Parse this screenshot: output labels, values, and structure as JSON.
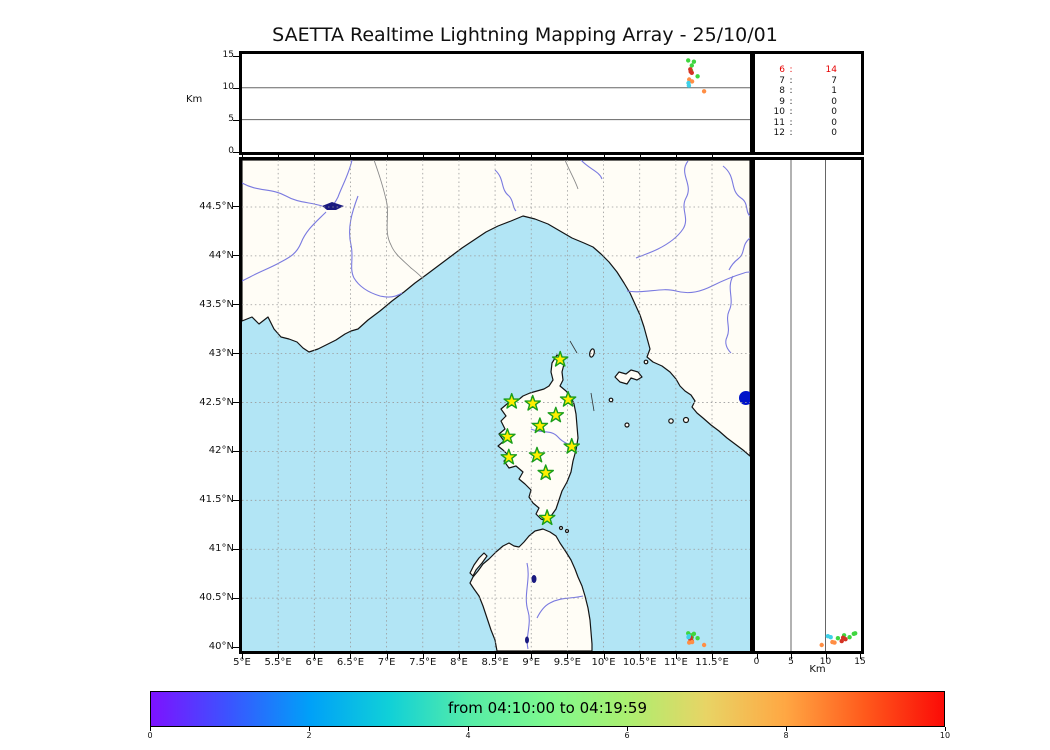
{
  "title": "SAETTA Realtime Lightning Mapping Array - 25/10/01",
  "alt_axis": {
    "label": "Km",
    "range": [
      0,
      15
    ],
    "ticks": [
      0,
      5,
      10,
      15
    ],
    "gridlines": [
      5,
      10
    ]
  },
  "lon_axis": {
    "ticks": [
      {
        "value": 5,
        "label": "5°E"
      },
      {
        "value": 5.5,
        "label": "5.5°E"
      },
      {
        "value": 6,
        "label": "6°E"
      },
      {
        "value": 6.5,
        "label": "6.5°E"
      },
      {
        "value": 7,
        "label": "7°E"
      },
      {
        "value": 7.5,
        "label": "7.5°E"
      },
      {
        "value": 8,
        "label": "8°E"
      },
      {
        "value": 8.5,
        "label": "8.5°E"
      },
      {
        "value": 9,
        "label": "9°E"
      },
      {
        "value": 9.5,
        "label": "9.5°E"
      },
      {
        "value": 10,
        "label": "10°E"
      },
      {
        "value": 10.5,
        "label": "10.5°E"
      },
      {
        "value": 11,
        "label": "11°E"
      },
      {
        "value": 11.5,
        "label": "11.5°E"
      }
    ]
  },
  "lat_axis": {
    "ticks": [
      {
        "value": 44.5,
        "label": "44.5°N"
      },
      {
        "value": 44,
        "label": "44°N"
      },
      {
        "value": 43.5,
        "label": "43.5°N"
      },
      {
        "value": 43,
        "label": "43°N"
      },
      {
        "value": 42.5,
        "label": "42.5°N"
      },
      {
        "value": 42,
        "label": "42°N"
      },
      {
        "value": 41.5,
        "label": "41.5°N"
      },
      {
        "value": 41,
        "label": "41°N"
      },
      {
        "value": 40.5,
        "label": "40.5°N"
      },
      {
        "value": 40,
        "label": "40°N"
      }
    ]
  },
  "stats_panel": {
    "rows": [
      {
        "label": "6",
        "value": "14",
        "highlight": true
      },
      {
        "label": "7",
        "value": "7",
        "highlight": false
      },
      {
        "label": "8",
        "value": "1",
        "highlight": false
      },
      {
        "label": "9",
        "value": "0",
        "highlight": false
      },
      {
        "label": "10",
        "value": "0",
        "highlight": false
      },
      {
        "label": "11",
        "value": "0",
        "highlight": false
      },
      {
        "label": "12",
        "value": "0",
        "highlight": false
      }
    ],
    "highlight_color": "#e60000"
  },
  "colorbar": {
    "label": "from 04:10:00 to 04:19:59",
    "range": [
      0,
      10
    ],
    "ticks": [
      0,
      2,
      4,
      6,
      8,
      10
    ],
    "gradient": [
      "#7d12ff",
      "#3a55ff",
      "#00a0f8",
      "#10d0d8",
      "#55eca8",
      "#7ef98e",
      "#abef70",
      "#e8d465",
      "#ffa743",
      "#ff5a1c",
      "#fb0b07"
    ]
  },
  "colors": {
    "sea": "#b2e5f5",
    "land": "#fffdf6",
    "coast": "#141414",
    "river": "#7a7ae0",
    "boundary": "#8a8a8a",
    "grid": "#9a9a9a",
    "panel_grid": "#666666",
    "lake": "#1a1a80",
    "lake_round": "#0013c9",
    "star_fill": "#ffee00",
    "star_edge": "#1a9e1a"
  },
  "chart_data": {
    "type": "scatter",
    "title": "SAETTA Realtime Lightning Mapping Array - 25/10/01",
    "panels": [
      {
        "id": "altitude-vs-longitude",
        "ylabel": "Km",
        "ylim": [
          0,
          15
        ],
        "xlim": [
          5,
          12.03
        ],
        "grid": "horizontal at 5,10"
      },
      {
        "id": "map-plan-view",
        "xlim": [
          5,
          12.03
        ],
        "ylim": [
          40,
          45.02
        ],
        "grid": "dashed 0.5 deg"
      },
      {
        "id": "altitude-vs-latitude",
        "xlabel": "Km",
        "xlim": [
          0,
          15
        ],
        "ylim": [
          40,
          45.02
        ],
        "grid": "vertical at 5,10"
      }
    ],
    "stations": [
      {
        "lon": 9.4,
        "lat": 42.94
      },
      {
        "lon": 8.73,
        "lat": 42.51
      },
      {
        "lon": 9.02,
        "lat": 42.49
      },
      {
        "lon": 9.51,
        "lat": 42.53
      },
      {
        "lon": 9.34,
        "lat": 42.37
      },
      {
        "lon": 9.12,
        "lat": 42.26
      },
      {
        "lon": 8.67,
        "lat": 42.15
      },
      {
        "lon": 9.56,
        "lat": 42.05
      },
      {
        "lon": 8.69,
        "lat": 41.94
      },
      {
        "lon": 9.08,
        "lat": 41.96
      },
      {
        "lon": 9.2,
        "lat": 41.78
      },
      {
        "lon": 9.22,
        "lat": 41.32
      }
    ],
    "sources": [
      {
        "lon": 11.17,
        "lat": 40.14,
        "alt_km": 14.3,
        "color": "#3fd63f"
      },
      {
        "lon": 11.25,
        "lat": 40.135,
        "alt_km": 14.1,
        "color": "#3fd63f"
      },
      {
        "lon": 11.22,
        "lat": 40.1,
        "alt_km": 13.5,
        "color": "#3fd63f"
      },
      {
        "lon": 11.3,
        "lat": 40.09,
        "alt_km": 11.8,
        "color": "#3fd63f"
      },
      {
        "lon": 11.21,
        "lat": 40.12,
        "alt_km": 12.7,
        "color": "#3fd63f"
      },
      {
        "lon": 11.2,
        "lat": 40.08,
        "alt_km": 12.9,
        "color": "#d43324"
      },
      {
        "lon": 11.22,
        "lat": 40.06,
        "alt_km": 12.35,
        "color": "#d43324"
      },
      {
        "lon": 11.205,
        "lat": 40.095,
        "alt_km": 12.55,
        "color": "#d43324"
      },
      {
        "lon": 11.185,
        "lat": 40.045,
        "alt_km": 11.3,
        "color": "#ff8e44"
      },
      {
        "lon": 11.39,
        "lat": 40.02,
        "alt_km": 9.45,
        "color": "#ff8e44"
      },
      {
        "lon": 11.225,
        "lat": 40.05,
        "alt_km": 11.0,
        "color": "#ff8e44"
      },
      {
        "lon": 11.175,
        "lat": 40.1,
        "alt_km": 10.75,
        "color": "#3fd0e8"
      },
      {
        "lon": 11.18,
        "lat": 40.11,
        "alt_km": 10.35,
        "color": "#3fd0e8"
      }
    ],
    "source_counts_table": [
      [
        "6",
        14
      ],
      [
        "7",
        7
      ],
      [
        "8",
        1
      ],
      [
        "9",
        0
      ],
      [
        "10",
        0
      ],
      [
        "11",
        0
      ],
      [
        "12",
        0
      ]
    ],
    "colorbar": {
      "label": "from 04:10:00 to 04:19:59",
      "ticks": [
        0,
        2,
        4,
        6,
        8,
        10
      ],
      "range": [
        0,
        10
      ]
    }
  }
}
